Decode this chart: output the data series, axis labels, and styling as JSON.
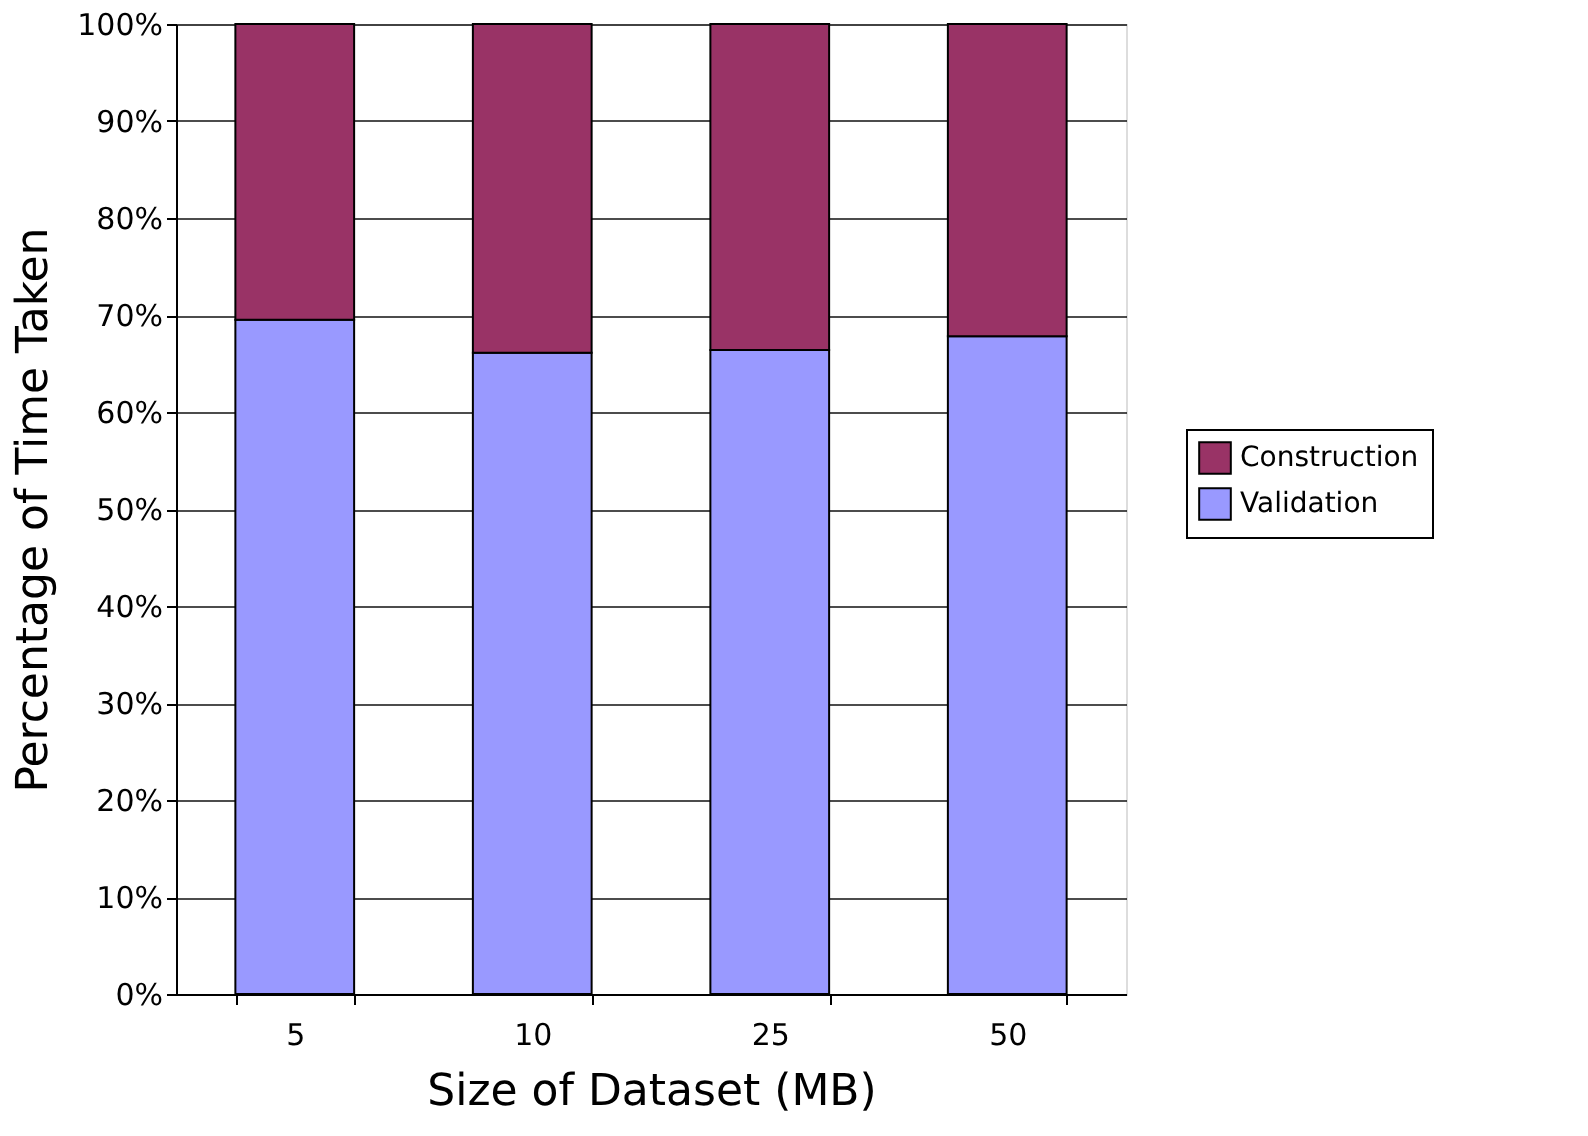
{
  "chart_data": {
    "type": "bar",
    "stacked": true,
    "xlabel": "Size of Dataset (MB)",
    "ylabel": "Percentage of Time Taken",
    "categories": [
      "5",
      "10",
      "25",
      "50"
    ],
    "series": [
      {
        "name": "Validation",
        "color": "#9999ff",
        "values": [
          69.5,
          66.1,
          66.4,
          67.8
        ]
      },
      {
        "name": "Construction",
        "color": "#993366",
        "values": [
          30.5,
          33.9,
          33.6,
          32.2
        ]
      }
    ],
    "ylim": [
      0,
      100
    ],
    "yticks": [
      {
        "value": 0,
        "label": "0%"
      },
      {
        "value": 10,
        "label": "10%"
      },
      {
        "value": 20,
        "label": "20%"
      },
      {
        "value": 30,
        "label": "30%"
      },
      {
        "value": 40,
        "label": "40%"
      },
      {
        "value": 50,
        "label": "50%"
      },
      {
        "value": 60,
        "label": "60%"
      },
      {
        "value": 70,
        "label": "70%"
      },
      {
        "value": 80,
        "label": "80%"
      },
      {
        "value": 90,
        "label": "90%"
      },
      {
        "value": 100,
        "label": "100%"
      }
    ],
    "grid": "y",
    "legend": "right"
  }
}
